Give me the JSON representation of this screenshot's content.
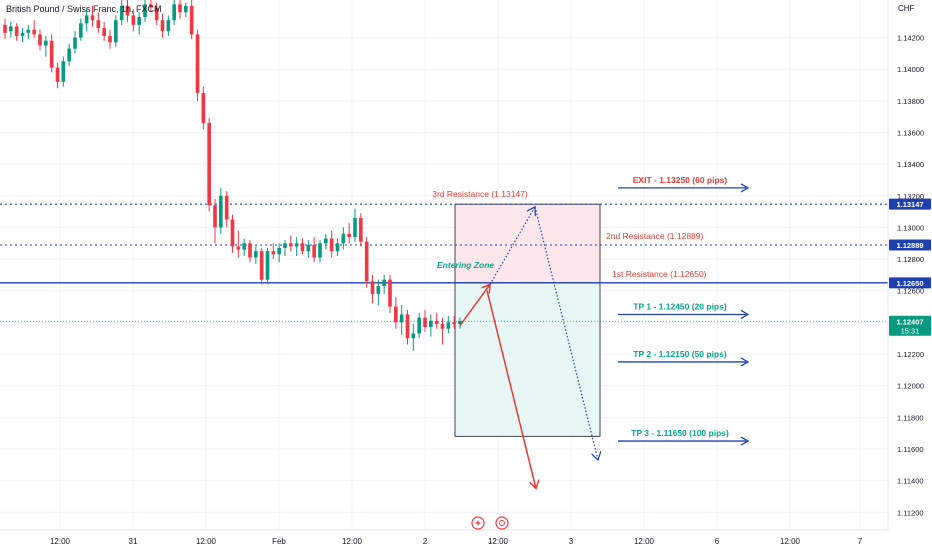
{
  "header": {
    "symbol_title": "British Pound / Swiss Franc, 1h, FXCM"
  },
  "axis": {
    "currency": "CHF"
  },
  "colors": {
    "up": "#089981",
    "down": "#f23645",
    "blue": "#1e40af",
    "teal": "#0aa688",
    "red": "#e53935"
  },
  "chart_data": {
    "type": "candlestick",
    "title": "British Pound / Swiss Franc, 1h, FXCM",
    "y_unit": "CHF",
    "ylim": [
      1.1105,
      1.1445
    ],
    "y_ticks": [
      1.112,
      1.114,
      1.116,
      1.118,
      1.12,
      1.122,
      1.124,
      1.126,
      1.128,
      1.13,
      1.132,
      1.134,
      1.136,
      1.138,
      1.14,
      1.142
    ],
    "x_ticks": [
      "12:00",
      "31",
      "12:00",
      "Feb",
      "12:00",
      "2",
      "12:00",
      "3",
      "12:00",
      "6",
      "12:00",
      "7"
    ],
    "candles": [
      [
        1.1428,
        1.1432,
        1.1419,
        1.1423
      ],
      [
        1.1424,
        1.143,
        1.142,
        1.1427
      ],
      [
        1.1427,
        1.1429,
        1.1418,
        1.1421
      ],
      [
        1.1421,
        1.1426,
        1.1417,
        1.1423
      ],
      [
        1.1423,
        1.1428,
        1.1419,
        1.1425
      ],
      [
        1.1425,
        1.1431,
        1.142,
        1.1422
      ],
      [
        1.1422,
        1.1425,
        1.1412,
        1.1415
      ],
      [
        1.1415,
        1.1421,
        1.1408,
        1.1418
      ],
      [
        1.1418,
        1.1422,
        1.1398,
        1.1401
      ],
      [
        1.1401,
        1.1404,
        1.1388,
        1.1392
      ],
      [
        1.1392,
        1.1408,
        1.1389,
        1.1405
      ],
      [
        1.1405,
        1.1416,
        1.1402,
        1.1413
      ],
      [
        1.1413,
        1.1424,
        1.141,
        1.142
      ],
      [
        1.142,
        1.1432,
        1.1418,
        1.1429
      ],
      [
        1.1429,
        1.1438,
        1.1424,
        1.1434
      ],
      [
        1.1434,
        1.144,
        1.1427,
        1.1431
      ],
      [
        1.1431,
        1.1436,
        1.1423,
        1.1426
      ],
      [
        1.1426,
        1.143,
        1.1418,
        1.1421
      ],
      [
        1.1421,
        1.1425,
        1.1413,
        1.1417
      ],
      [
        1.1417,
        1.1434,
        1.1414,
        1.1431
      ],
      [
        1.1431,
        1.1444,
        1.1428,
        1.144
      ],
      [
        1.144,
        1.1444,
        1.143,
        1.1434
      ],
      [
        1.1434,
        1.1438,
        1.1424,
        1.1428
      ],
      [
        1.1428,
        1.1436,
        1.1422,
        1.1433
      ],
      [
        1.1433,
        1.1444,
        1.143,
        1.1441
      ],
      [
        1.1441,
        1.1444,
        1.1436,
        1.1439
      ],
      [
        1.1439,
        1.1442,
        1.1428,
        1.1431
      ],
      [
        1.1431,
        1.1435,
        1.142,
        1.1424
      ],
      [
        1.1424,
        1.1434,
        1.1421,
        1.1431
      ],
      [
        1.1431,
        1.1444,
        1.1428,
        1.1441
      ],
      [
        1.1441,
        1.1444,
        1.1432,
        1.1436
      ],
      [
        1.1436,
        1.1442,
        1.1433,
        1.144
      ],
      [
        1.144,
        1.1444,
        1.1419,
        1.1422
      ],
      [
        1.1422,
        1.1425,
        1.138,
        1.1385
      ],
      [
        1.1385,
        1.1389,
        1.1362,
        1.1366
      ],
      [
        1.1366,
        1.1369,
        1.131,
        1.1314
      ],
      [
        1.1314,
        1.1318,
        1.129,
        1.13
      ],
      [
        1.13,
        1.1325,
        1.1296,
        1.132
      ],
      [
        1.132,
        1.1323,
        1.13,
        1.1305
      ],
      [
        1.1305,
        1.1308,
        1.1284,
        1.1288
      ],
      [
        1.1288,
        1.1298,
        1.1281,
        1.1286
      ],
      [
        1.1286,
        1.1293,
        1.1282,
        1.129
      ],
      [
        1.129,
        1.1292,
        1.1278,
        1.1281
      ],
      [
        1.1281,
        1.1288,
        1.1277,
        1.1285
      ],
      [
        1.1285,
        1.1287,
        1.1264,
        1.1267
      ],
      [
        1.1267,
        1.1287,
        1.1264,
        1.1285
      ],
      [
        1.1285,
        1.129,
        1.128,
        1.1283
      ],
      [
        1.1283,
        1.129,
        1.1278,
        1.1287
      ],
      [
        1.1287,
        1.1292,
        1.1282,
        1.129
      ],
      [
        1.129,
        1.1295,
        1.1285,
        1.1288
      ],
      [
        1.1288,
        1.1294,
        1.1282,
        1.129
      ],
      [
        1.129,
        1.1293,
        1.1283,
        1.1285
      ],
      [
        1.1285,
        1.1292,
        1.1281,
        1.1289
      ],
      [
        1.1289,
        1.1294,
        1.1278,
        1.1281
      ],
      [
        1.1281,
        1.1292,
        1.1278,
        1.129
      ],
      [
        1.129,
        1.1296,
        1.1286,
        1.1293
      ],
      [
        1.1293,
        1.1298,
        1.1281,
        1.1285
      ],
      [
        1.1285,
        1.1293,
        1.1282,
        1.129
      ],
      [
        1.129,
        1.13,
        1.1286,
        1.1296
      ],
      [
        1.1296,
        1.1303,
        1.129,
        1.1294
      ],
      [
        1.1294,
        1.1312,
        1.1291,
        1.1306
      ],
      [
        1.1306,
        1.1309,
        1.1288,
        1.1291
      ],
      [
        1.1291,
        1.1294,
        1.1262,
        1.1266
      ],
      [
        1.1266,
        1.127,
        1.1252,
        1.1258
      ],
      [
        1.1258,
        1.1267,
        1.1251,
        1.1263
      ],
      [
        1.1263,
        1.127,
        1.1258,
        1.1267
      ],
      [
        1.1267,
        1.127,
        1.1246,
        1.125
      ],
      [
        1.125,
        1.1256,
        1.1236,
        1.124
      ],
      [
        1.124,
        1.1251,
        1.1232,
        1.1245
      ],
      [
        1.1245,
        1.1248,
        1.1226,
        1.123
      ],
      [
        1.123,
        1.1239,
        1.1222,
        1.1233
      ],
      [
        1.1233,
        1.1246,
        1.123,
        1.1243
      ],
      [
        1.1243,
        1.1248,
        1.1234,
        1.1237
      ],
      [
        1.1237,
        1.1245,
        1.1231,
        1.1241
      ],
      [
        1.1241,
        1.1246,
        1.1236,
        1.1239
      ],
      [
        1.1239,
        1.1243,
        1.1226,
        1.1236
      ],
      [
        1.1236,
        1.1244,
        1.1233,
        1.124
      ],
      [
        1.124,
        1.1244,
        1.1236,
        1.1239
      ],
      [
        1.1239,
        1.1243,
        1.1236,
        1.1241
      ]
    ],
    "horizontal_levels": [
      {
        "name": "3rd Resistance",
        "price": 1.13147,
        "style": "dotted",
        "axis_label": "1.13147"
      },
      {
        "name": "2nd Resistance",
        "price": 1.12889,
        "style": "dotted",
        "axis_label": "1.12889"
      },
      {
        "name": "1st Resistance",
        "price": 1.1265,
        "style": "solid",
        "axis_label": "1.12650"
      },
      {
        "name": "current",
        "price": 1.12407,
        "style": "dotted-green",
        "axis_label": "1.12407",
        "countdown": "15:31"
      }
    ],
    "zones": {
      "upper": {
        "top": 1.13147,
        "bottom": 1.1265,
        "color": "#fde7ea"
      },
      "lower": {
        "top": 1.1265,
        "bottom": 1.1168,
        "color": "#e6f7f6"
      }
    },
    "annotations": {
      "resistance_3": "3rd Resistance (1.13147)",
      "resistance_2": "2nd Resistance (1.12889)",
      "resistance_1": "1st Resistance  (1.12650)",
      "entering_zone": "Entering Zone",
      "exit": "EXIT - 1.13250 (60 pips)",
      "tp1": "TP 1 - 1.12450 (20 pips)",
      "tp2": "TP 2 - 1.12150 (50 pips)",
      "tp3": "TP 3 - 1.11650 (100 pips)"
    },
    "target_levels": {
      "exit": 1.1325,
      "tp1": 1.1245,
      "tp2": 1.1215,
      "tp3": 1.1165
    },
    "projection": {
      "start_price": 1.1238,
      "entry_price": 1.1264,
      "bear_target": 1.1135,
      "bull_peak": 1.1313,
      "bull_target": 1.1153
    }
  }
}
